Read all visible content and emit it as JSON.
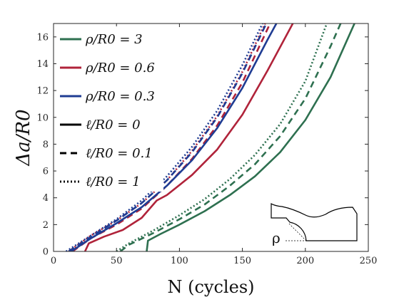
{
  "chart_data": {
    "type": "line",
    "xlabel": "N (cycles)",
    "ylabel": "Δa/R0",
    "xlim": [
      0,
      250
    ],
    "ylim": [
      0,
      17
    ],
    "xticks": [
      0,
      50,
      100,
      150,
      200,
      250
    ],
    "yticks": [
      0,
      2,
      4,
      6,
      8,
      10,
      12,
      14,
      16
    ],
    "grid": false,
    "legend_placement": "top-left",
    "legend": [
      {
        "text": "ρ/R0 = 3",
        "color": "#2e7050",
        "dash": "solid"
      },
      {
        "text": "ρ/R0 = 0.6",
        "color": "#b0233a",
        "dash": "solid"
      },
      {
        "text": "ρ/R0 = 0.3",
        "color": "#1f3c93",
        "dash": "solid"
      },
      {
        "text": "ℓ/R0 = 0",
        "color": "#000000",
        "dash": "solid"
      },
      {
        "text": "ℓ/R0 = 0.1",
        "color": "#000000",
        "dash": "dashed"
      },
      {
        "text": "ℓ/R0 = 1",
        "color": "#000000",
        "dash": "dotted"
      }
    ],
    "series": [
      {
        "color": "#2e7050",
        "dash": "solid",
        "points": [
          [
            74,
            0
          ],
          [
            75,
            0.8
          ],
          [
            85,
            1.3
          ],
          [
            100,
            2.0
          ],
          [
            120,
            3.0
          ],
          [
            140,
            4.2
          ],
          [
            160,
            5.6
          ],
          [
            180,
            7.4
          ],
          [
            200,
            9.8
          ],
          [
            220,
            13.0
          ],
          [
            239,
            17.0
          ]
        ]
      },
      {
        "color": "#2e7050",
        "dash": "dashed",
        "points": [
          [
            53,
            0
          ],
          [
            60,
            0.5
          ],
          [
            80,
            1.4
          ],
          [
            100,
            2.4
          ],
          [
            120,
            3.5
          ],
          [
            140,
            4.9
          ],
          [
            160,
            6.5
          ],
          [
            180,
            8.6
          ],
          [
            200,
            11.4
          ],
          [
            220,
            15.3
          ],
          [
            228,
            17.0
          ]
        ]
      },
      {
        "color": "#2e7050",
        "dash": "dotted",
        "points": [
          [
            50,
            0
          ],
          [
            60,
            0.6
          ],
          [
            80,
            1.6
          ],
          [
            100,
            2.7
          ],
          [
            120,
            3.9
          ],
          [
            140,
            5.4
          ],
          [
            160,
            7.2
          ],
          [
            180,
            9.5
          ],
          [
            200,
            12.7
          ],
          [
            217,
            17.0
          ]
        ]
      },
      {
        "color": "#b0233a",
        "dash": "solid",
        "points": [
          [
            25,
            0
          ],
          [
            28,
            0.6
          ],
          [
            40,
            1.1
          ],
          [
            55,
            1.6
          ],
          [
            70,
            2.5
          ],
          [
            82,
            3.8
          ],
          [
            90,
            4.2
          ],
          [
            110,
            5.7
          ],
          [
            130,
            7.6
          ],
          [
            150,
            10.2
          ],
          [
            170,
            13.5
          ],
          [
            190,
            17.0
          ]
        ]
      },
      {
        "color": "#b0233a",
        "dash": "dashed",
        "points": [
          [
            15,
            0
          ],
          [
            30,
            1.0
          ],
          [
            50,
            2.0
          ],
          [
            70,
            3.2
          ],
          [
            90,
            4.9
          ],
          [
            110,
            6.9
          ],
          [
            130,
            9.4
          ],
          [
            150,
            12.6
          ],
          [
            172,
            17.0
          ]
        ]
      },
      {
        "color": "#b0233a",
        "dash": "dotted",
        "points": [
          [
            12,
            0
          ],
          [
            30,
            1.2
          ],
          [
            50,
            2.3
          ],
          [
            70,
            3.6
          ],
          [
            90,
            5.3
          ],
          [
            110,
            7.5
          ],
          [
            130,
            10.1
          ],
          [
            150,
            13.4
          ],
          [
            168,
            17.0
          ]
        ]
      },
      {
        "color": "#1f3c93",
        "dash": "solid",
        "points": [
          [
            14,
            0
          ],
          [
            30,
            1.0
          ],
          [
            50,
            2.1
          ],
          [
            70,
            3.3
          ],
          [
            90,
            4.9
          ],
          [
            110,
            6.8
          ],
          [
            130,
            9.2
          ],
          [
            150,
            12.2
          ],
          [
            170,
            15.8
          ],
          [
            177,
            17.0
          ]
        ]
      },
      {
        "color": "#1f3c93",
        "dash": "dashed",
        "points": [
          [
            12,
            0
          ],
          [
            30,
            1.1
          ],
          [
            50,
            2.3
          ],
          [
            70,
            3.6
          ],
          [
            90,
            5.3
          ],
          [
            110,
            7.4
          ],
          [
            130,
            10.0
          ],
          [
            150,
            13.3
          ],
          [
            169,
            17.0
          ]
        ]
      },
      {
        "color": "#1f3c93",
        "dash": "dotted",
        "points": [
          [
            10,
            0
          ],
          [
            30,
            1.2
          ],
          [
            50,
            2.4
          ],
          [
            70,
            3.8
          ],
          [
            90,
            5.6
          ],
          [
            110,
            7.8
          ],
          [
            130,
            10.5
          ],
          [
            150,
            13.9
          ],
          [
            166,
            17.0
          ]
        ]
      }
    ]
  },
  "inset": {
    "label": "ρ"
  }
}
